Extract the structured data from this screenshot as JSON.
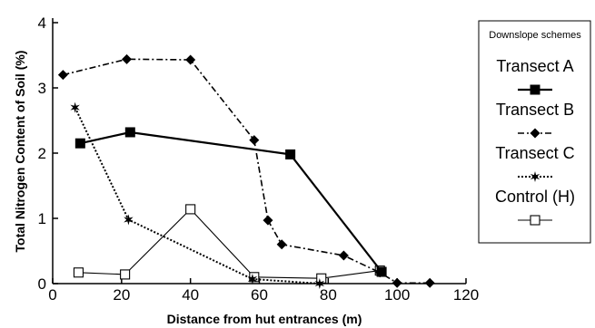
{
  "chart_data": {
    "type": "line",
    "title": "",
    "xlabel": "Distance from hut entrances (m)",
    "ylabel": "Total Nitrogen Content of Soil (%)",
    "xlim": [
      0,
      120
    ],
    "ylim": [
      0,
      4
    ],
    "xticks": [
      0,
      20,
      40,
      60,
      80,
      100,
      120
    ],
    "yticks": [
      0,
      1,
      2,
      3,
      4
    ],
    "grid": false,
    "legend": {
      "title": "Downslope schemes",
      "placement": "right"
    },
    "series": [
      {
        "name": "Transect A",
        "marker": "filled-square",
        "line": "solid-thick",
        "color": "#000000",
        "points": [
          [
            8,
            2.15
          ],
          [
            22.5,
            2.32
          ],
          [
            69,
            1.98
          ],
          [
            95.5,
            0.18
          ]
        ]
      },
      {
        "name": "Transect B",
        "marker": "filled-diamond",
        "line": "dash-dot",
        "color": "#000000",
        "points": [
          [
            3,
            3.2
          ],
          [
            21.5,
            3.44
          ],
          [
            40,
            3.43
          ],
          [
            58.5,
            2.2
          ],
          [
            62.5,
            0.97
          ],
          [
            66.5,
            0.6
          ],
          [
            84.5,
            0.43
          ],
          [
            95,
            0.17
          ],
          [
            100,
            0.01
          ],
          [
            109.5,
            0.01
          ]
        ]
      },
      {
        "name": "Transect C",
        "marker": "star",
        "line": "dotted",
        "color": "#000000",
        "points": [
          [
            6.5,
            2.7
          ],
          [
            22,
            0.98
          ],
          [
            58,
            0.07
          ],
          [
            77.5,
            0.0
          ]
        ]
      },
      {
        "name": "Control (H)",
        "marker": "open-square",
        "line": "solid-thin",
        "color": "#000000",
        "points": [
          [
            7.5,
            0.17
          ],
          [
            21,
            0.14
          ],
          [
            40,
            1.14
          ],
          [
            58.5,
            0.1
          ],
          [
            78,
            0.08
          ],
          [
            95,
            0.2
          ]
        ]
      }
    ]
  }
}
